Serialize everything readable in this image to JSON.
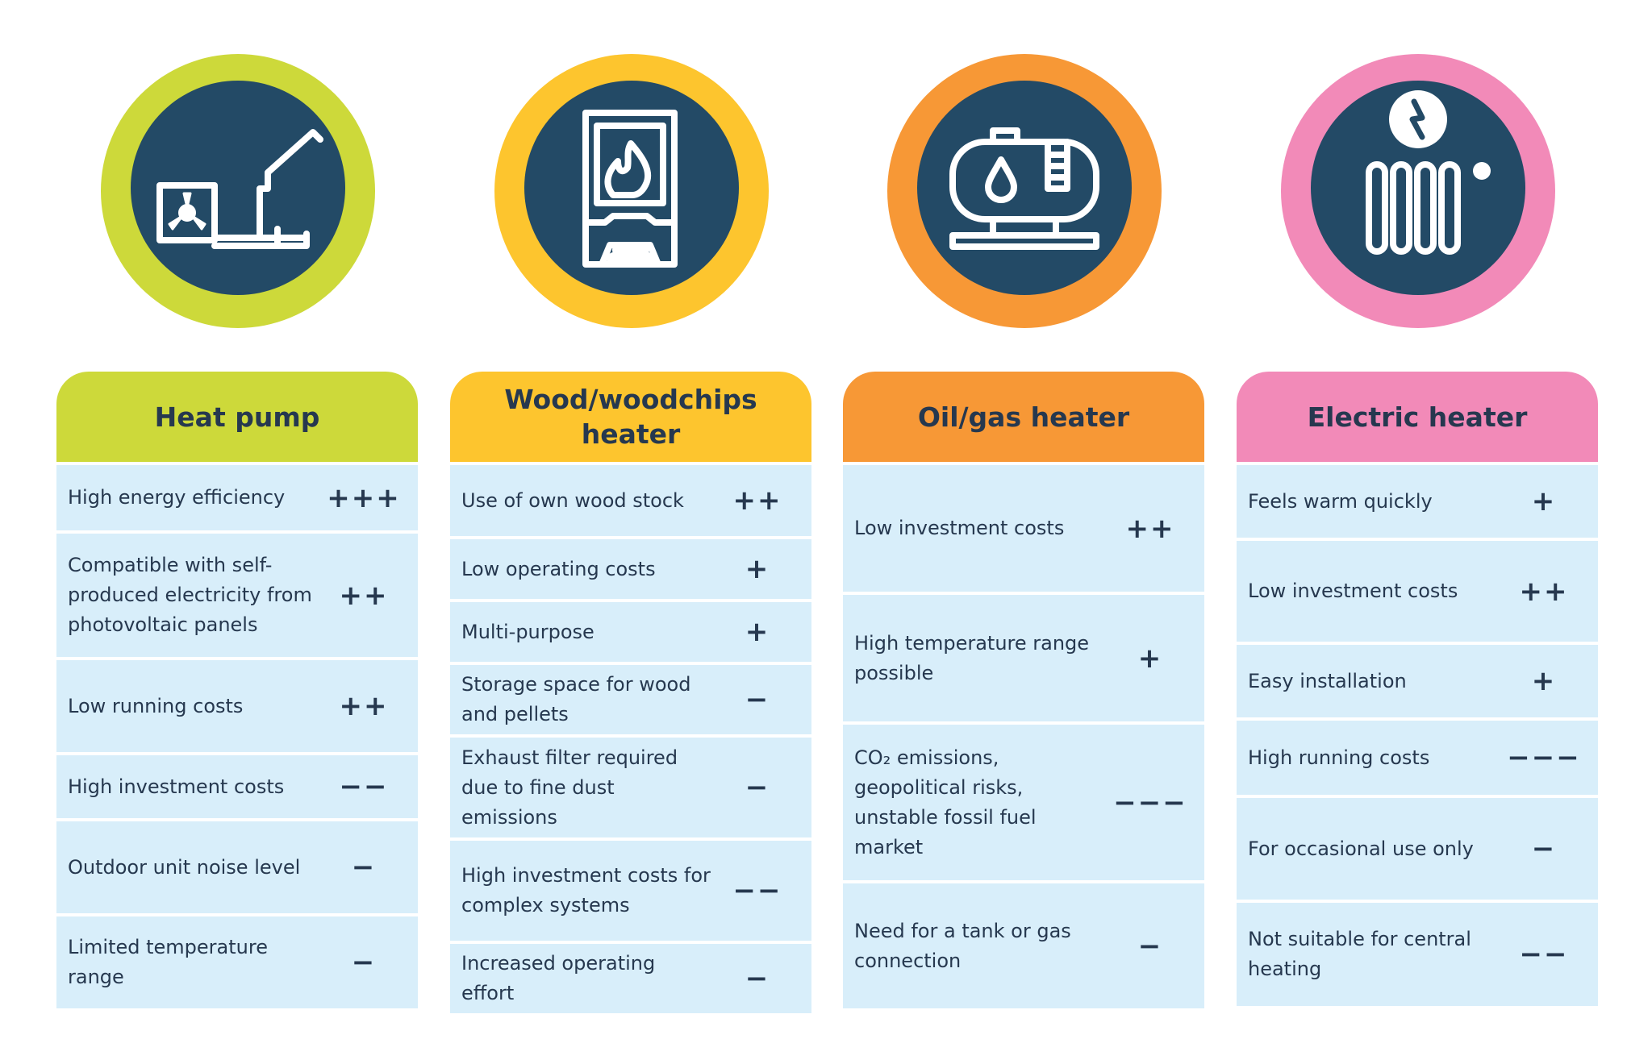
{
  "colors": {
    "navy": "#234a66",
    "text": "#26384f",
    "row_bg": "#d8eefa",
    "heat_pump": "#cdd93a",
    "wood": "#fdc52e",
    "oil_gas": "#f79836",
    "electric": "#f28ab8"
  },
  "columns": [
    {
      "title": "Heat pump",
      "icon": "heat-pump-icon",
      "color": "#cdd93a",
      "rows": [
        {
          "label": "High energy efficiency",
          "rating": "+++"
        },
        {
          "label": "Compatible with self-produced electricity from photovoltaic panels",
          "rating": "++"
        },
        {
          "label": "Low running costs",
          "rating": "++"
        },
        {
          "label": "High investment costs",
          "rating": "−−"
        },
        {
          "label": "Outdoor unit noise level",
          "rating": "−"
        },
        {
          "label": "Limited temperature range",
          "rating": "−"
        }
      ]
    },
    {
      "title": "Wood/woodchips heater",
      "icon": "wood-stove-icon",
      "color": "#fdc52e",
      "rows": [
        {
          "label": "Use of own wood stock",
          "rating": "++"
        },
        {
          "label": "Low operating costs",
          "rating": "+"
        },
        {
          "label": "Multi-purpose",
          "rating": "+"
        },
        {
          "label": "Storage space for wood and pellets",
          "rating": "−"
        },
        {
          "label": "Exhaust filter required due to fine dust emissions",
          "rating": "−"
        },
        {
          "label": "High investment costs for complex systems",
          "rating": "−−"
        },
        {
          "label": "Increased operating effort",
          "rating": "−"
        }
      ]
    },
    {
      "title": "Oil/gas heater",
      "icon": "oil-tank-icon",
      "color": "#f79836",
      "rows": [
        {
          "label": "Low investment costs",
          "rating": "++"
        },
        {
          "label": "High temperature range possible",
          "rating": "+"
        },
        {
          "label": "CO₂ emissions, geopolitical risks, unstable fossil fuel market",
          "rating": "−−−"
        },
        {
          "label": "Need for a tank or gas connection",
          "rating": "−"
        }
      ]
    },
    {
      "title": "Electric heater",
      "icon": "electric-radiator-icon",
      "color": "#f28ab8",
      "rows": [
        {
          "label": "Feels warm quickly",
          "rating": "+"
        },
        {
          "label": "Low investment costs",
          "rating": "++"
        },
        {
          "label": "Easy installation",
          "rating": "+"
        },
        {
          "label": "High running costs",
          "rating": "−−−"
        },
        {
          "label": "For occasional use only",
          "rating": "−"
        },
        {
          "label": "Not suitable for central heating",
          "rating": "−−"
        }
      ]
    }
  ]
}
